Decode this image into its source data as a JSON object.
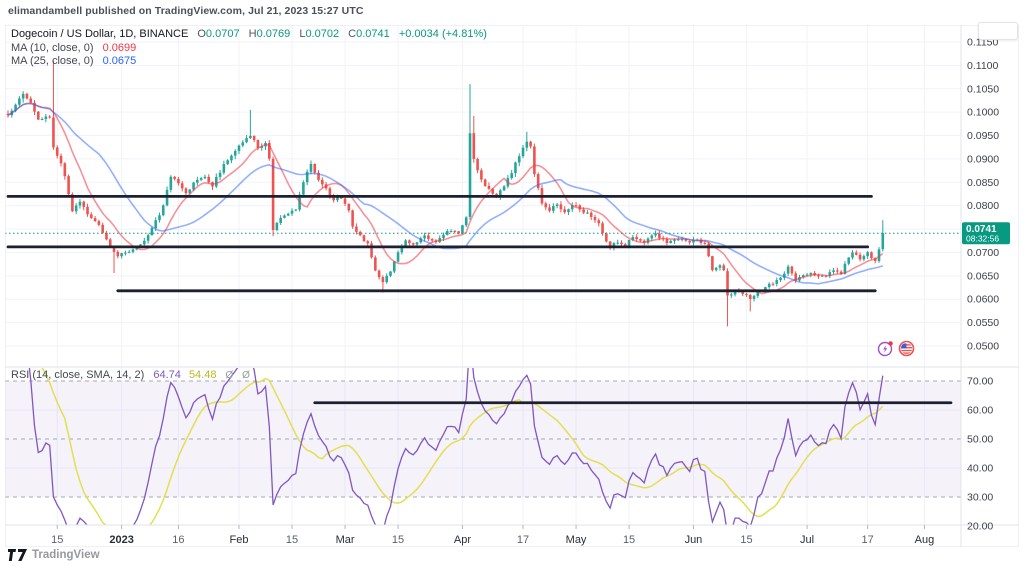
{
  "attribution": "elimandambell published on TradingView.com, Jul 21, 2023 15:27 UTC",
  "watermark": {
    "brand": "TradingView"
  },
  "symbol_legend": {
    "title": "Dogecoin / US Dollar, 1D, BINANCE",
    "o_label": "O",
    "o_value": "0.0707",
    "h_label": "H",
    "h_value": "0.0769",
    "l_label": "L",
    "l_value": "0.0702",
    "c_label": "C",
    "c_value": "0.0741",
    "change": "+0.0034 (+4.81%)"
  },
  "ma_legends": [
    {
      "label": "MA (10, close, 0)",
      "value": "0.0699"
    },
    {
      "label": "MA (25, close, 0)",
      "value": "0.0675"
    }
  ],
  "rsi_legend": {
    "label": "RSI (14, close, SMA, 14, 2)",
    "rsi_value": "64.74",
    "sma_value": "54.48",
    "empty_glyphs": "Ø Ø"
  },
  "price_badge": {
    "price": "0.0741",
    "countdown": "08:32:56"
  },
  "price_axis": {
    "labels": [
      "0.1150",
      "0.1100",
      "0.1050",
      "0.1000",
      "0.0950",
      "0.0900",
      "0.0850",
      "0.0800",
      "0.0750",
      "0.0700",
      "0.0650",
      "0.0600",
      "0.0550",
      "0.0500"
    ]
  },
  "rsi_axis": {
    "labels": [
      "70.00",
      "60.00",
      "50.00",
      "40.00",
      "30.00",
      "20.00"
    ]
  },
  "time_axis": {
    "ticks": [
      {
        "label": "15",
        "day": 13,
        "kind": "day"
      },
      {
        "label": "2023",
        "day": 30,
        "kind": "year"
      },
      {
        "label": "16",
        "day": 45,
        "kind": "day"
      },
      {
        "label": "Feb",
        "day": 61,
        "kind": "month"
      },
      {
        "label": "15",
        "day": 75,
        "kind": "day"
      },
      {
        "label": "Mar",
        "day": 89,
        "kind": "month"
      },
      {
        "label": "15",
        "day": 103,
        "kind": "day"
      },
      {
        "label": "Apr",
        "day": 120,
        "kind": "month"
      },
      {
        "label": "17",
        "day": 136,
        "kind": "day"
      },
      {
        "label": "May",
        "day": 150,
        "kind": "month"
      },
      {
        "label": "15",
        "day": 164,
        "kind": "day"
      },
      {
        "label": "Jun",
        "day": 181,
        "kind": "month"
      },
      {
        "label": "15",
        "day": 195,
        "kind": "day"
      },
      {
        "label": "Jul",
        "day": 211,
        "kind": "month"
      },
      {
        "label": "17",
        "day": 227,
        "kind": "day"
      },
      {
        "label": "Aug",
        "day": 242,
        "kind": "month"
      }
    ]
  },
  "colors": {
    "up": "#26a69a",
    "down": "#ef5350",
    "ma_fast": "#f23645",
    "ma_slow": "#2962ff",
    "rsi": "#7e57c2",
    "rsi_sma": "#e0e052",
    "band_fill": "rgba(126,87,194,0.08)",
    "band_line": "#a5a8b1",
    "trendline": "#1c2030",
    "grid": "#f0f3fa",
    "axis_text": "#3c4049",
    "tick_day_text": "#5d616e",
    "frame": "#e0e3eb",
    "accent": "#089981"
  },
  "chart_data": {
    "type": "candlestick+rsi",
    "title": "Dogecoin / US Dollar, 1D, BINANCE",
    "symbol": "DOGEUSD",
    "interval": "1D",
    "start_date": "2022-12-02",
    "end_date": "2023-07-21",
    "days": 231,
    "price_ylim": [
      0.0475,
      0.1165
    ],
    "rsi_ylim": [
      20,
      75
    ],
    "last_candle": {
      "o": 0.0707,
      "h": 0.0769,
      "l": 0.0702,
      "c": 0.0741
    },
    "ma10_last": 0.0699,
    "ma25_last": 0.0675,
    "rsi_last": 64.74,
    "rsi_sma_last": 54.48,
    "close_anchors": [
      [
        0,
        0.0995
      ],
      [
        2,
        0.1015
      ],
      [
        4,
        0.1038
      ],
      [
        6,
        0.102
      ],
      [
        8,
        0.0985
      ],
      [
        10,
        0.0992
      ],
      [
        11,
        0.0988
      ],
      [
        12,
        0.0925
      ],
      [
        14,
        0.089
      ],
      [
        15,
        0.0862
      ],
      [
        17,
        0.0788
      ],
      [
        19,
        0.0808
      ],
      [
        21,
        0.0782
      ],
      [
        23,
        0.0768
      ],
      [
        25,
        0.0742
      ],
      [
        27,
        0.0712
      ],
      [
        29,
        0.0692
      ],
      [
        31,
        0.07
      ],
      [
        33,
        0.0706
      ],
      [
        35,
        0.0718
      ],
      [
        38,
        0.0752
      ],
      [
        41,
        0.08
      ],
      [
        43,
        0.0862
      ],
      [
        45,
        0.0848
      ],
      [
        47,
        0.0826
      ],
      [
        50,
        0.0856
      ],
      [
        52,
        0.0862
      ],
      [
        54,
        0.0842
      ],
      [
        57,
        0.0888
      ],
      [
        60,
        0.0916
      ],
      [
        63,
        0.0944
      ],
      [
        64,
        0.095
      ],
      [
        66,
        0.0922
      ],
      [
        68,
        0.0934
      ],
      [
        69,
        0.0902
      ],
      [
        70,
        0.0748
      ],
      [
        72,
        0.0775
      ],
      [
        74,
        0.0782
      ],
      [
        76,
        0.0792
      ],
      [
        78,
        0.085
      ],
      [
        80,
        0.0888
      ],
      [
        82,
        0.0856
      ],
      [
        84,
        0.0836
      ],
      [
        86,
        0.0812
      ],
      [
        88,
        0.0816
      ],
      [
        90,
        0.079
      ],
      [
        91,
        0.0756
      ],
      [
        93,
        0.0736
      ],
      [
        95,
        0.072
      ],
      [
        97,
        0.0662
      ],
      [
        99,
        0.0636
      ],
      [
        101,
        0.066
      ],
      [
        103,
        0.07
      ],
      [
        105,
        0.0726
      ],
      [
        107,
        0.0716
      ],
      [
        110,
        0.0736
      ],
      [
        113,
        0.0722
      ],
      [
        116,
        0.0746
      ],
      [
        119,
        0.0742
      ],
      [
        121,
        0.0776
      ],
      [
        122,
        0.0955
      ],
      [
        123,
        0.09
      ],
      [
        125,
        0.0856
      ],
      [
        127,
        0.0836
      ],
      [
        129,
        0.082
      ],
      [
        131,
        0.0842
      ],
      [
        133,
        0.087
      ],
      [
        135,
        0.0906
      ],
      [
        137,
        0.0936
      ],
      [
        138,
        0.0928
      ],
      [
        139,
        0.0868
      ],
      [
        141,
        0.0806
      ],
      [
        143,
        0.079
      ],
      [
        145,
        0.0802
      ],
      [
        147,
        0.0786
      ],
      [
        149,
        0.08
      ],
      [
        151,
        0.0792
      ],
      [
        153,
        0.0786
      ],
      [
        156,
        0.0762
      ],
      [
        159,
        0.071
      ],
      [
        161,
        0.0722
      ],
      [
        163,
        0.0714
      ],
      [
        165,
        0.0734
      ],
      [
        168,
        0.072
      ],
      [
        171,
        0.074
      ],
      [
        174,
        0.0721
      ],
      [
        177,
        0.0728
      ],
      [
        180,
        0.0722
      ],
      [
        182,
        0.0728
      ],
      [
        184,
        0.0718
      ],
      [
        185,
        0.0692
      ],
      [
        186,
        0.0662
      ],
      [
        188,
        0.0672
      ],
      [
        189,
        0.0662
      ],
      [
        190,
        0.0608
      ],
      [
        192,
        0.0618
      ],
      [
        194,
        0.0612
      ],
      [
        196,
        0.06
      ],
      [
        198,
        0.0618
      ],
      [
        200,
        0.0626
      ],
      [
        202,
        0.0633
      ],
      [
        204,
        0.0646
      ],
      [
        206,
        0.067
      ],
      [
        208,
        0.064
      ],
      [
        210,
        0.0651
      ],
      [
        212,
        0.0656
      ],
      [
        214,
        0.0648
      ],
      [
        216,
        0.065
      ],
      [
        218,
        0.0661
      ],
      [
        220,
        0.0655
      ],
      [
        222,
        0.069
      ],
      [
        223,
        0.07
      ],
      [
        225,
        0.0686
      ],
      [
        227,
        0.07
      ],
      [
        229,
        0.0682
      ],
      [
        230,
        0.0707
      ],
      [
        231,
        0.0741
      ]
    ],
    "special_candles": {
      "12": {
        "h": 0.111
      },
      "28": {
        "l": 0.0656
      },
      "64": {
        "h": 0.1005
      },
      "70": {
        "o": 0.09,
        "h": 0.0905,
        "l": 0.0735,
        "c": 0.0748
      },
      "99": {
        "l": 0.0614
      },
      "122": {
        "o": 0.0776,
        "h": 0.106,
        "l": 0.077,
        "c": 0.0955
      },
      "123": {
        "h": 0.0992
      },
      "137": {
        "h": 0.0958
      },
      "190": {
        "o": 0.066,
        "h": 0.0666,
        "l": 0.0542,
        "c": 0.0608
      },
      "196": {
        "l": 0.0574
      },
      "231": {
        "o": 0.0707,
        "h": 0.0769,
        "l": 0.0702,
        "c": 0.0741
      }
    },
    "wiggle": {
      "close": 0.006,
      "wick": 0.008
    },
    "trendlines": [
      {
        "pane": "price",
        "value": 0.082,
        "x1_day": 0,
        "x2_day": 228
      },
      {
        "pane": "price",
        "value": 0.0712,
        "x1_day": 0,
        "x2_day": 227
      },
      {
        "pane": "price",
        "value": 0.0618,
        "x1_day": 29,
        "x2_day": 229
      },
      {
        "pane": "rsi",
        "value": 62.5,
        "x1_day": 81,
        "x2_day": 249
      }
    ],
    "current_price_line": 0.0741,
    "indicators": {
      "ma_fast": 10,
      "ma_slow": 25,
      "rsi_period": 14,
      "rsi_sma": 14,
      "rsi_band": [
        30,
        70
      ],
      "rsi_mid": 50
    }
  }
}
